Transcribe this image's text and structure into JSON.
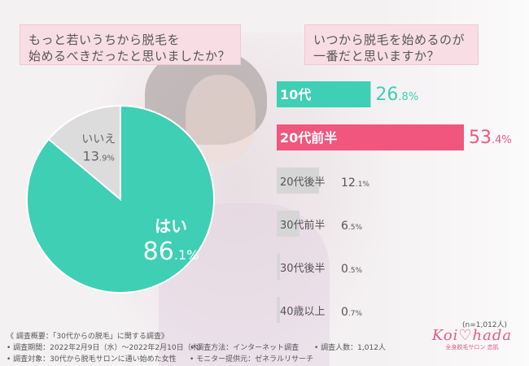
{
  "question_left": {
    "line1": "もっと若いうちから脱毛を",
    "line2": "始めるべきだったと思いましたか？"
  },
  "question_right": {
    "line1": "いつから脱毛を始めるのが",
    "line2": "一番だと思いますか？"
  },
  "chart_data": [
    {
      "type": "pie",
      "categories": [
        "はい",
        "いいえ"
      ],
      "values": [
        86.1,
        13.9
      ],
      "value_labels": [
        "86.1%",
        "13.9%"
      ],
      "colors": [
        "#3ecfb4",
        "#dcdcdc"
      ],
      "label_colors": [
        "#ffffff",
        "#666666"
      ]
    },
    {
      "type": "bar",
      "orientation": "horizontal",
      "categories": [
        "10代",
        "20代前半",
        "20代後半",
        "30代前半",
        "30代後半",
        "40歳以上"
      ],
      "values": [
        26.8,
        53.4,
        12.1,
        6.5,
        0.5,
        0.7
      ],
      "value_labels": [
        "26.8%",
        "53.4%",
        "12.1%",
        "6.5%",
        "0.5%",
        "0.7%"
      ],
      "colors": [
        "#3ecfb4",
        "#f0567e",
        "#d6d6d6",
        "#d6d6d6",
        "#d6d6d6",
        "#d6d6d6"
      ],
      "value_colors": [
        "#3ecfb4",
        "#f0567e",
        "#555555",
        "#555555",
        "#555555",
        "#555555"
      ],
      "label_colors": [
        "#ffffff",
        "#ffffff",
        "#555555",
        "#555555",
        "#555555",
        "#555555"
      ],
      "highlighted": [
        true,
        true,
        false,
        false,
        false,
        false
      ]
    }
  ],
  "sample_size": "(n=1,012人)",
  "survey": {
    "title": "《 調査概要：「30代からの脱毛」に関する調査》",
    "period": "• 調査期間：2022年2月9日（水）～2022年2月10日（木）",
    "method": "• 調査方法：インターネット調査",
    "count": "• 調査人数：1,012人",
    "target": "• 調査対象：30代から脱毛サロンに通い始めた女性",
    "provider": "• モニター提供元：ゼネラルリサーチ"
  },
  "brand": {
    "logo": "Koi♡hada",
    "tagline": "全身脱毛サロン 恋肌"
  }
}
